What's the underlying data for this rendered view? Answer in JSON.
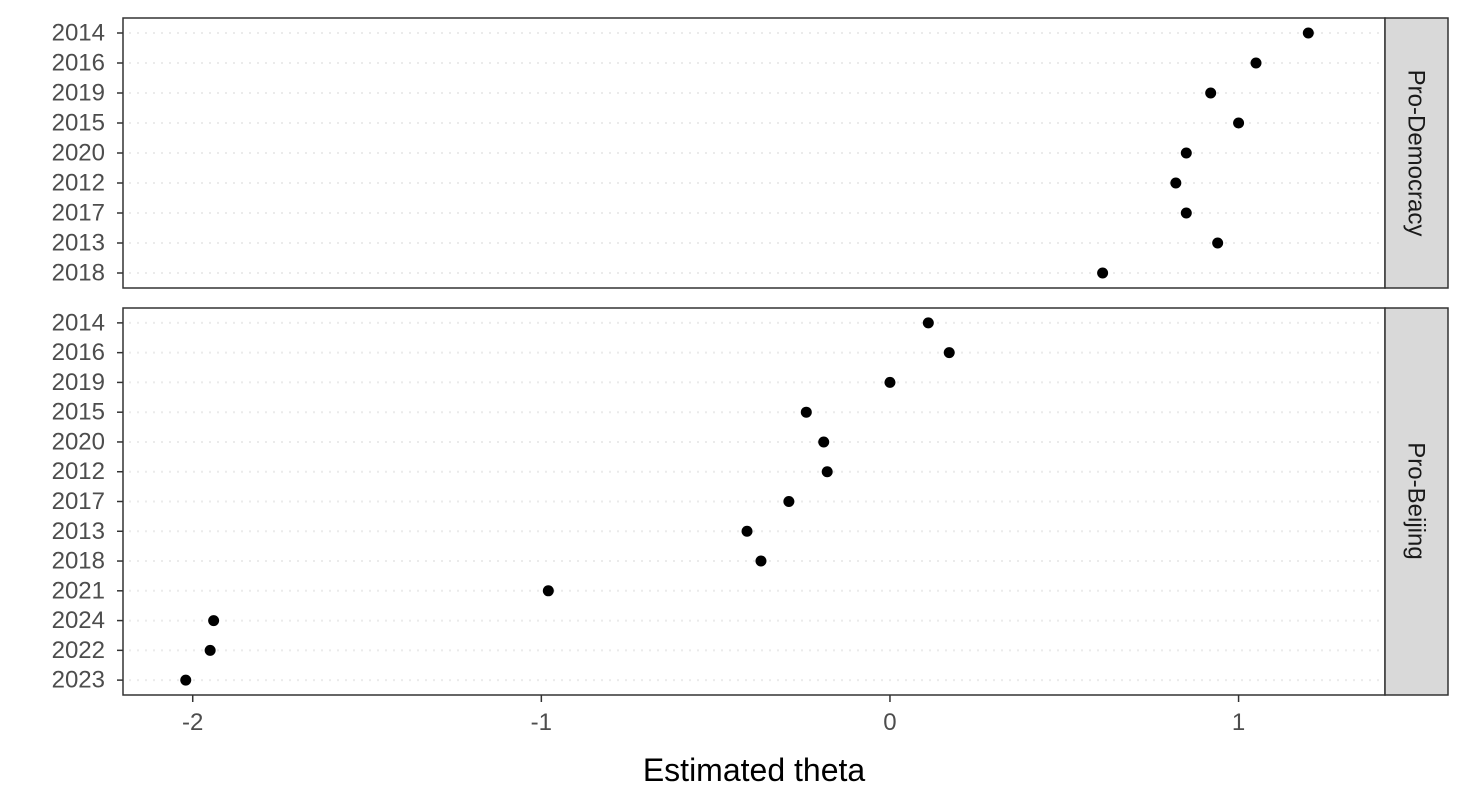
{
  "chart_data": {
    "type": "scatter",
    "xlabel": "Estimated theta",
    "ylabel": "",
    "xlim": [
      -2.2,
      1.42
    ],
    "x_ticks": [
      "-2",
      "-1",
      "0",
      "1"
    ],
    "x_tick_values": [
      -2,
      -1,
      0,
      1
    ],
    "grid": "dotted horizontal",
    "panels": [
      {
        "facet": "Pro-Democracy",
        "points": [
          {
            "year": "2014",
            "theta": 1.2
          },
          {
            "year": "2016",
            "theta": 1.05
          },
          {
            "year": "2019",
            "theta": 0.92
          },
          {
            "year": "2015",
            "theta": 1.0
          },
          {
            "year": "2020",
            "theta": 0.85
          },
          {
            "year": "2012",
            "theta": 0.82
          },
          {
            "year": "2017",
            "theta": 0.85
          },
          {
            "year": "2013",
            "theta": 0.94
          },
          {
            "year": "2018",
            "theta": 0.61
          }
        ]
      },
      {
        "facet": "Pro-Beijing",
        "points": [
          {
            "year": "2014",
            "theta": 0.11
          },
          {
            "year": "2016",
            "theta": 0.17
          },
          {
            "year": "2019",
            "theta": 0.0
          },
          {
            "year": "2015",
            "theta": -0.24
          },
          {
            "year": "2020",
            "theta": -0.19
          },
          {
            "year": "2012",
            "theta": -0.18
          },
          {
            "year": "2017",
            "theta": -0.29
          },
          {
            "year": "2013",
            "theta": -0.41
          },
          {
            "year": "2018",
            "theta": -0.37
          },
          {
            "year": "2021",
            "theta": -0.98
          },
          {
            "year": "2024",
            "theta": -1.94
          },
          {
            "year": "2022",
            "theta": -1.95
          },
          {
            "year": "2023",
            "theta": -2.02
          }
        ]
      }
    ]
  }
}
